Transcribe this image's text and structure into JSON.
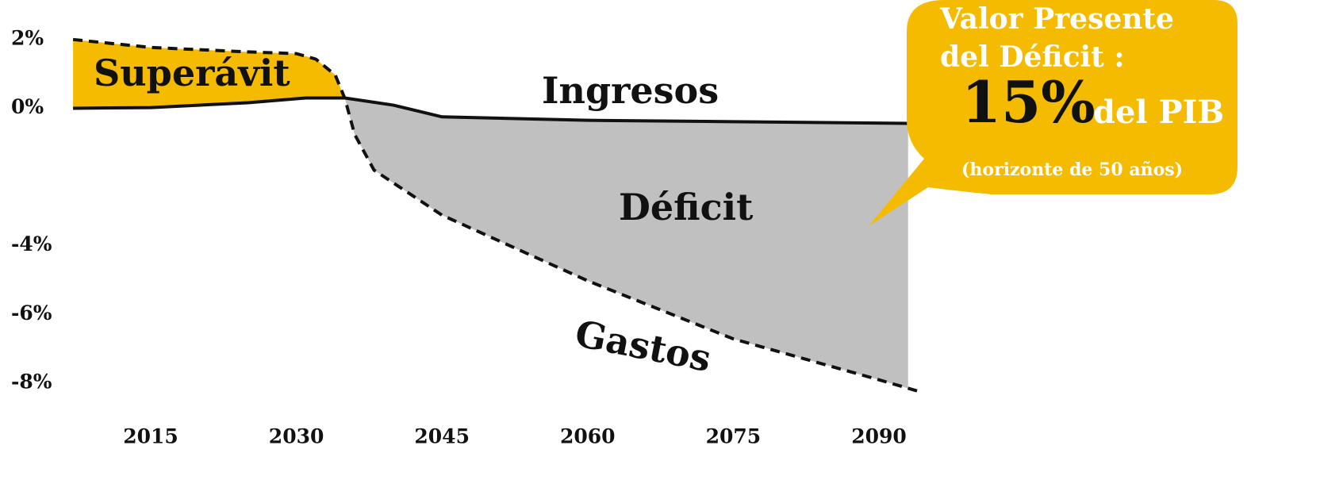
{
  "chart_data": {
    "type": "line",
    "x": null,
    "series": [
      {
        "name": "Ingresos",
        "color": "#111111",
        "dash": false,
        "x": [
          2007,
          2015,
          2025,
          2031,
          2035,
          2040,
          2045,
          2060,
          2075,
          2093
        ],
        "values": [
          0.0,
          0.02,
          0.16,
          0.3,
          0.3,
          0.09,
          -0.25,
          -0.35,
          -0.39,
          -0.44
        ]
      },
      {
        "name": "Gastos",
        "color": "#111111",
        "dash": true,
        "x": [
          2007,
          2015,
          2025,
          2030,
          2032,
          2034,
          2035,
          2036,
          2038,
          2045,
          2060,
          2075,
          2090,
          2094
        ],
        "values": [
          2.0,
          1.77,
          1.64,
          1.59,
          1.43,
          0.97,
          0.28,
          -0.76,
          -1.8,
          -3.11,
          -5.02,
          -6.71,
          -7.9,
          -8.23
        ]
      }
    ],
    "surplus_color": "#f5bb00",
    "deficit_color": "#c0c0c0",
    "xlim": [
      2000,
      2100
    ],
    "xticks": [
      2015,
      2030,
      2045,
      2060,
      2075,
      2090
    ],
    "ylim": [
      -9.2,
      3.15
    ],
    "yticks": [
      {
        "value": 2,
        "label": "2%"
      },
      {
        "value": 0,
        "label": "0%"
      },
      {
        "value": -4,
        "label": "-4%"
      },
      {
        "value": -6,
        "label": "-6%"
      },
      {
        "value": -8,
        "label": "-8%"
      }
    ],
    "annotations": {
      "surplus": "Superávit",
      "revenue": "Ingresos",
      "deficit": "Déficit",
      "spending": "Gastos"
    },
    "callout": {
      "line1": "Valor Presente",
      "line2": "del Déficit :",
      "value": "15%",
      "unit": "del PIB",
      "note": "(horizonte de 50 años)",
      "color": "#f5bb00"
    }
  }
}
